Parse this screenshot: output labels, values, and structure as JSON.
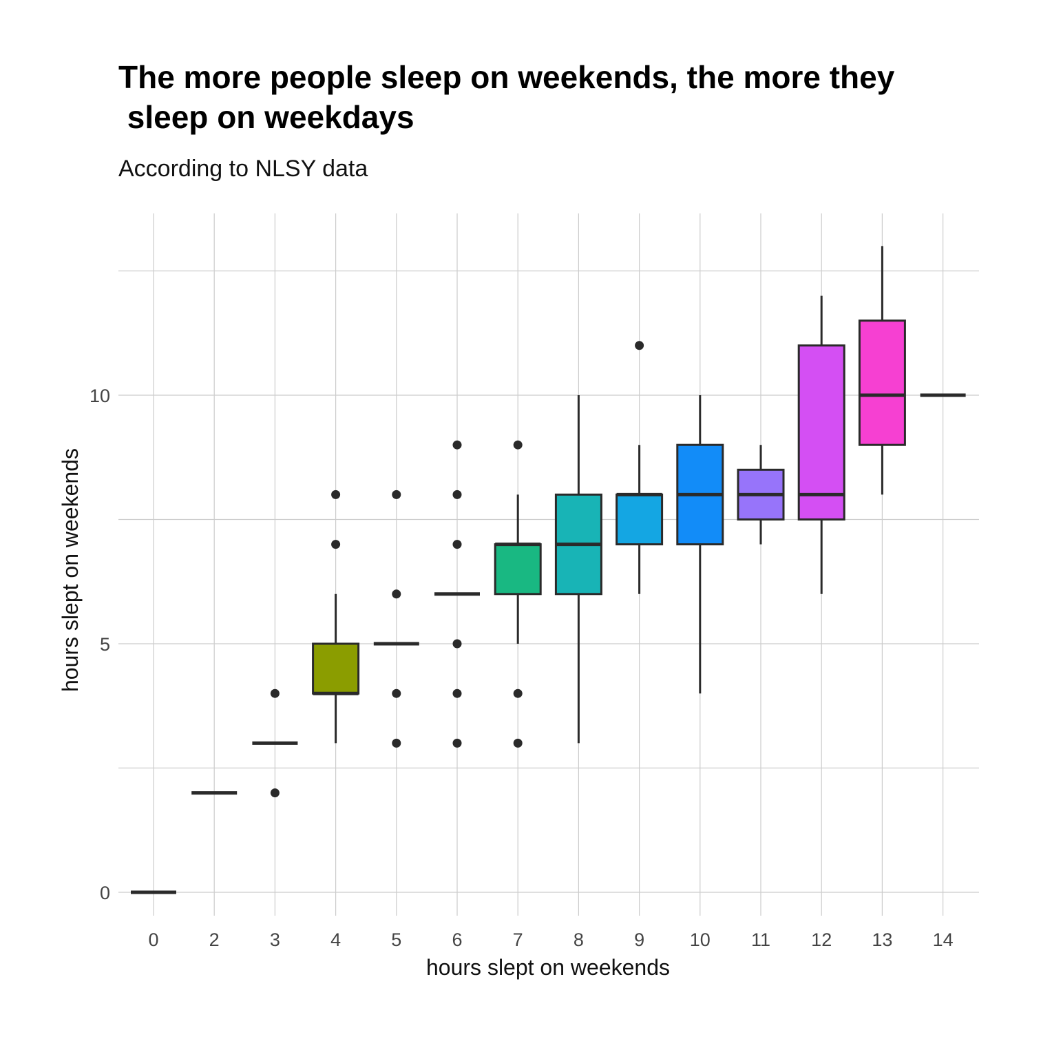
{
  "chart_data": {
    "type": "boxplot",
    "title_line1": "The more people sleep on weekends, the more they",
    "title_line2": " sleep on weekdays",
    "subtitle": "According to NLSY data",
    "xlabel": "hours slept on weekends",
    "ylabel": "hours slept on weekends",
    "ylim": [
      -0.4,
      13.2
    ],
    "y_ticks": [
      0,
      5,
      10
    ],
    "y_minor_gridlines": [
      2.5,
      7.5,
      12.5
    ],
    "grid": true,
    "legend": "none",
    "categories": [
      "0",
      "2",
      "3",
      "4",
      "5",
      "6",
      "7",
      "8",
      "9",
      "10",
      "11",
      "12",
      "13",
      "14"
    ],
    "boxes": [
      {
        "category": "0",
        "low": 0,
        "q1": 0,
        "median": 0,
        "q3": 0,
        "high": 0,
        "color": "#F8766D",
        "outliers": []
      },
      {
        "category": "2",
        "low": 2,
        "q1": 2,
        "median": 2,
        "q3": 2,
        "high": 2,
        "color": "#E18A00",
        "outliers": []
      },
      {
        "category": "3",
        "low": 3,
        "q1": 3,
        "median": 3,
        "q3": 3,
        "high": 3,
        "color": "#BE9C00",
        "outliers": [
          2,
          4
        ]
      },
      {
        "category": "4",
        "low": 3,
        "q1": 4,
        "median": 4,
        "q3": 5,
        "high": 6,
        "color": "#8B9D00",
        "outliers": [
          7,
          8
        ]
      },
      {
        "category": "5",
        "low": 5,
        "q1": 5,
        "median": 5,
        "q3": 5,
        "high": 5,
        "color": "#24B700",
        "outliers": [
          3,
          4,
          6,
          8
        ]
      },
      {
        "category": "6",
        "low": 6,
        "q1": 6,
        "median": 6,
        "q3": 6,
        "high": 6,
        "color": "#00BE70",
        "outliers": [
          3,
          4,
          5,
          7,
          8,
          9
        ]
      },
      {
        "category": "7",
        "low": 5,
        "q1": 6,
        "median": 7,
        "q3": 7,
        "high": 8,
        "color": "#19B882",
        "outliers": [
          3,
          4,
          9
        ]
      },
      {
        "category": "8",
        "low": 3,
        "q1": 6,
        "median": 7,
        "q3": 8,
        "high": 10,
        "color": "#18B4B6",
        "outliers": []
      },
      {
        "category": "9",
        "low": 6,
        "q1": 7,
        "median": 8,
        "q3": 8,
        "high": 9,
        "color": "#14A6E3",
        "outliers": [
          11
        ]
      },
      {
        "category": "10",
        "low": 4,
        "q1": 7,
        "median": 8,
        "q3": 9,
        "high": 10,
        "color": "#128CF8",
        "outliers": []
      },
      {
        "category": "11",
        "low": 7,
        "q1": 7.5,
        "median": 8,
        "q3": 8.5,
        "high": 9,
        "color": "#9774FA",
        "outliers": []
      },
      {
        "category": "12",
        "low": 6,
        "q1": 7.5,
        "median": 8,
        "q3": 11,
        "high": 12,
        "color": "#D44FF3",
        "outliers": []
      },
      {
        "category": "13",
        "low": 8,
        "q1": 9,
        "median": 10,
        "q3": 11.5,
        "high": 13,
        "color": "#F640D2",
        "outliers": []
      },
      {
        "category": "14",
        "low": 10,
        "q1": 10,
        "median": 10,
        "q3": 10,
        "high": 10,
        "color": "#FF5EA8",
        "outliers": []
      }
    ]
  }
}
